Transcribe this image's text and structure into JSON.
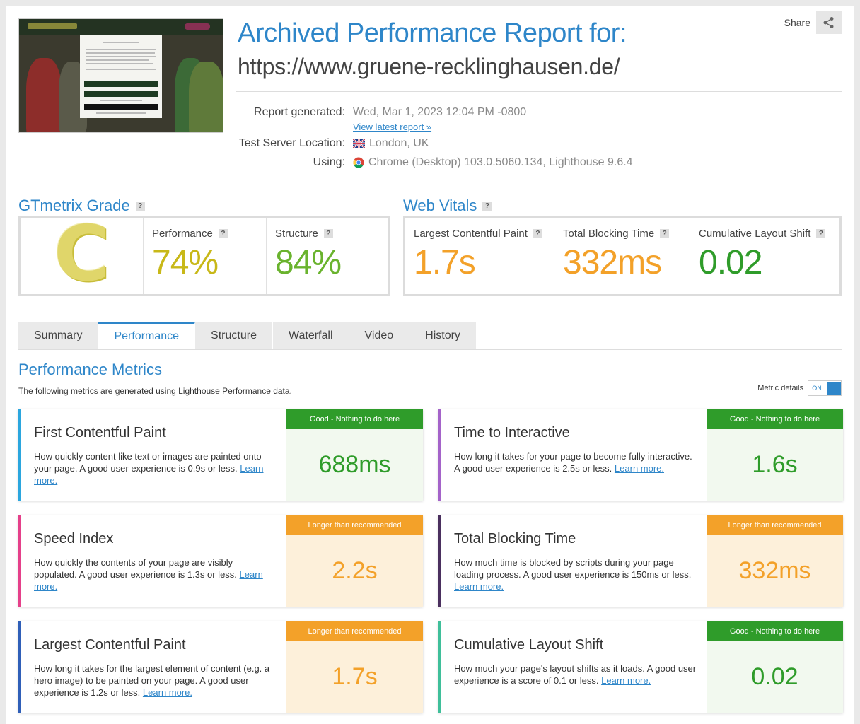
{
  "header": {
    "title": "Archived Performance Report for:",
    "url": "https://www.gruene-recklinghausen.de/",
    "share_label": "Share"
  },
  "meta": {
    "report_generated_label": "Report generated:",
    "report_generated_value": "Wed, Mar 1, 2023 12:04 PM -0800",
    "view_latest_link": "View latest report »",
    "server_location_label": "Test Server Location:",
    "server_location_value": "London, UK",
    "using_label": "Using:",
    "using_value": "Chrome (Desktop) 103.0.5060.134, Lighthouse 9.6.4"
  },
  "grade": {
    "heading": "GTmetrix Grade",
    "letter": "C",
    "performance_label": "Performance",
    "performance_value": "74%",
    "structure_label": "Structure",
    "structure_value": "84%"
  },
  "web_vitals": {
    "heading": "Web Vitals",
    "lcp_label": "Largest Contentful Paint",
    "lcp_value": "1.7s",
    "tbt_label": "Total Blocking Time",
    "tbt_value": "332ms",
    "cls_label": "Cumulative Layout Shift",
    "cls_value": "0.02"
  },
  "tabs": [
    "Summary",
    "Performance",
    "Structure",
    "Waterfall",
    "Video",
    "History"
  ],
  "performance": {
    "heading": "Performance Metrics",
    "subtitle": "The following metrics are generated using Lighthouse Performance data.",
    "metric_details_label": "Metric details",
    "toggle_label": "ON"
  },
  "metrics": [
    {
      "title": "First Contentful Paint",
      "desc": "How quickly content like text or images are painted onto your page. A good user experience is 0.9s or less.",
      "link": "Learn more.",
      "badge": "Good - Nothing to do here",
      "value": "688ms"
    },
    {
      "title": "Time to Interactive",
      "desc": "How long it takes for your page to become fully interactive. A good user experience is 2.5s or less.",
      "link": "Learn more.",
      "badge": "Good - Nothing to do here",
      "value": "1.6s"
    },
    {
      "title": "Speed Index",
      "desc": "How quickly the contents of your page are visibly populated. A good user experience is 1.3s or less.",
      "link": "Learn more.",
      "badge": "Longer than recommended",
      "value": "2.2s"
    },
    {
      "title": "Total Blocking Time",
      "desc": "How much time is blocked by scripts during your page loading process. A good user experience is 150ms or less.",
      "link": "Learn more.",
      "badge": "Longer than recommended",
      "value": "332ms"
    },
    {
      "title": "Largest Contentful Paint",
      "desc": "How long it takes for the largest element of content (e.g. a hero image) to be painted on your page. A good user experience is 1.2s or less.",
      "link": "Learn more.",
      "badge": "Longer than recommended",
      "value": "1.7s"
    },
    {
      "title": "Cumulative Layout Shift",
      "desc": "How much your page's layout shifts as it loads. A good user experience is a score of 0.1 or less.",
      "link": "Learn more.",
      "badge": "Good - Nothing to do here",
      "value": "0.02"
    }
  ],
  "colors": {
    "accent": "#2e86c9",
    "good": "#2f9c2a",
    "warn": "#f3a129",
    "grade_c": "#e0d66a",
    "performance_value": "#c8b818",
    "structure_value": "#6ab32e",
    "cls_value": "#2f9c2a"
  }
}
